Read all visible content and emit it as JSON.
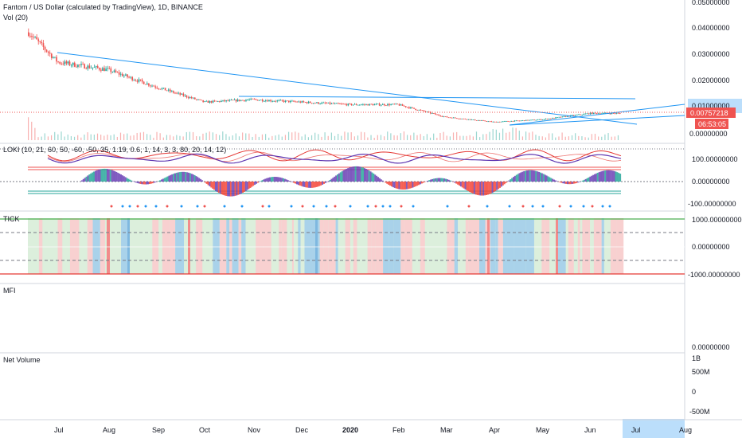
{
  "header": {
    "title": "Fantom / US Dollar (calculated by TradingView), 1D, BINANCE",
    "volume_label": "Vol (20)"
  },
  "colors": {
    "up": "#26a69a",
    "down": "#ef5350",
    "trendline": "#2196f3",
    "price_line": "#ef5350",
    "loki_fast": "#e53935",
    "loki_slow": "#5e35b1",
    "hist_purple": "#6a3fb5",
    "hist_red": "#f44336",
    "hist_teal": "#26a69a",
    "tick_bg_red": "#f8d0d0",
    "tick_bg_green": "#dcefdc",
    "tick_bg_blue": "#a9d2ea",
    "net_volume": "#4aa3df",
    "mfi": "#131722",
    "current_price_badge": "#ef5350",
    "axis_highlight": "#bbdefb"
  },
  "panes": {
    "loki": {
      "title": "LOKI (10, 21, 60, 50, -60, -50, 35, 1.19, 0.6, 1, 14, 3, 3, 80, 20, 14, 12)"
    },
    "tick": {
      "title": "TICK"
    },
    "mfi": {
      "title": "MFI"
    },
    "net_volume": {
      "title": "Net Volume"
    }
  },
  "price_axis": {
    "labels": [
      "0.05000000",
      "0.04000000",
      "0.03000000",
      "0.02000000",
      "0.01000000",
      "0.00000000"
    ],
    "current_price": "0.00757218",
    "countdown": "06:53:05"
  },
  "loki_axis": {
    "labels": [
      "100.00000000",
      "0.00000000",
      "-100.00000000"
    ]
  },
  "tick_axis": {
    "labels": [
      "1000.00000000",
      "0.00000000",
      "-1000.00000000"
    ]
  },
  "mfi_axis": {
    "labels": [
      "0.00000000"
    ]
  },
  "netvol_axis": {
    "labels": [
      "1B",
      "500M",
      "0",
      "-500M"
    ]
  },
  "time_axis": {
    "labels": [
      "Jul",
      "Aug",
      "Sep",
      "Oct",
      "Nov",
      "Dec",
      "2020",
      "Feb",
      "Mar",
      "Apr",
      "May",
      "Jun",
      "Jul",
      "Aug"
    ]
  },
  "chart_data": {
    "type": "line",
    "x": [
      "Jul",
      "Aug",
      "Sep",
      "Oct",
      "Nov",
      "Dec",
      "2020",
      "Feb",
      "Mar",
      "Apr",
      "May",
      "Jun"
    ],
    "series": [
      {
        "values": [
          0.028,
          0.025,
          0.018,
          0.012,
          0.013,
          0.012,
          0.011,
          0.011,
          0.006,
          0.004,
          0.005,
          0.0075
        ]
      }
    ],
    "yticks": [
      0.05,
      0.04,
      0.03,
      0.02,
      0.01,
      0.0
    ],
    "ylim": [
      -0.002,
      0.052
    ]
  }
}
